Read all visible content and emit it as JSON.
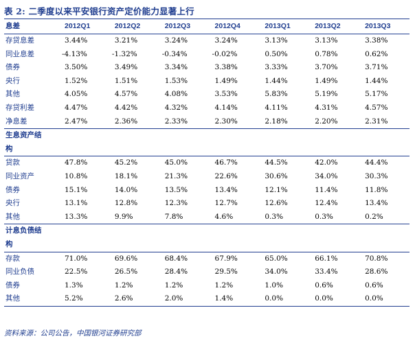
{
  "title": "表 2:  二季度以来平安银行资产定价能力显著上行",
  "columns": [
    "息差",
    "2012Q1",
    "2012Q2",
    "2012Q3",
    "2012Q4",
    "2013Q1",
    "2013Q2",
    "2013Q3"
  ],
  "margin_rows": [
    {
      "label": "存贷息差",
      "values": [
        "3.44%",
        "3.21%",
        "3.24%",
        "3.24%",
        "3.13%",
        "3.13%",
        "3.38%"
      ]
    },
    {
      "label": "同业息差",
      "values": [
        "-4.13%",
        "-1.32%",
        "-0.34%",
        "-0.02%",
        "0.50%",
        "0.78%",
        "0.62%"
      ]
    },
    {
      "label": "债券",
      "values": [
        "3.50%",
        "3.49%",
        "3.34%",
        "3.38%",
        "3.33%",
        "3.70%",
        "3.71%"
      ]
    },
    {
      "label": "央行",
      "values": [
        "1.52%",
        "1.51%",
        "1.53%",
        "1.49%",
        "1.44%",
        "1.49%",
        "1.44%"
      ]
    },
    {
      "label": "其他",
      "values": [
        "4.05%",
        "4.57%",
        "4.08%",
        "3.53%",
        "5.83%",
        "5.19%",
        "5.17%"
      ]
    },
    {
      "label": "存贷利差",
      "values": [
        "4.47%",
        "4.42%",
        "4.32%",
        "4.14%",
        "4.11%",
        "4.31%",
        "4.57%"
      ]
    },
    {
      "label": "净息差",
      "values": [
        "2.47%",
        "2.36%",
        "2.33%",
        "2.30%",
        "2.18%",
        "2.20%",
        "2.31%"
      ]
    }
  ],
  "asset_section": {
    "line1": "生息资产结",
    "line2": "构"
  },
  "asset_rows": [
    {
      "label": "贷款",
      "values": [
        "47.8%",
        "45.2%",
        "45.0%",
        "46.7%",
        "44.5%",
        "42.0%",
        "44.4%"
      ]
    },
    {
      "label": "同业资产",
      "values": [
        "10.8%",
        "18.1%",
        "21.3%",
        "22.6%",
        "30.6%",
        "34.0%",
        "30.3%"
      ]
    },
    {
      "label": "债券",
      "values": [
        "15.1%",
        "14.0%",
        "13.5%",
        "13.4%",
        "12.1%",
        "11.4%",
        "11.8%"
      ]
    },
    {
      "label": "央行",
      "values": [
        "13.1%",
        "12.8%",
        "12.3%",
        "12.7%",
        "12.6%",
        "12.4%",
        "13.4%"
      ]
    },
    {
      "label": "其他",
      "values": [
        "13.3%",
        "9.9%",
        "7.8%",
        "4.6%",
        "0.3%",
        "0.3%",
        "0.2%"
      ]
    }
  ],
  "liability_section": {
    "line1": "计息负债结",
    "line2": "构"
  },
  "liability_rows": [
    {
      "label": "存款",
      "values": [
        "71.0%",
        "69.6%",
        "68.4%",
        "67.9%",
        "65.0%",
        "66.1%",
        "70.8%"
      ]
    },
    {
      "label": "同业负债",
      "values": [
        "22.5%",
        "26.5%",
        "28.4%",
        "29.5%",
        "34.0%",
        "33.4%",
        "28.6%"
      ]
    },
    {
      "label": "债券",
      "values": [
        "1.3%",
        "1.2%",
        "1.2%",
        "1.2%",
        "1.0%",
        "0.6%",
        "0.6%"
      ]
    },
    {
      "label": "其他",
      "values": [
        "5.2%",
        "2.6%",
        "2.0%",
        "1.4%",
        "0.0%",
        "0.0%",
        "0.0%"
      ]
    }
  ],
  "source": "资料来源：公司公告，中国银河证券研究部",
  "colors": {
    "accent": "#1f3d8f",
    "text": "#000000"
  }
}
